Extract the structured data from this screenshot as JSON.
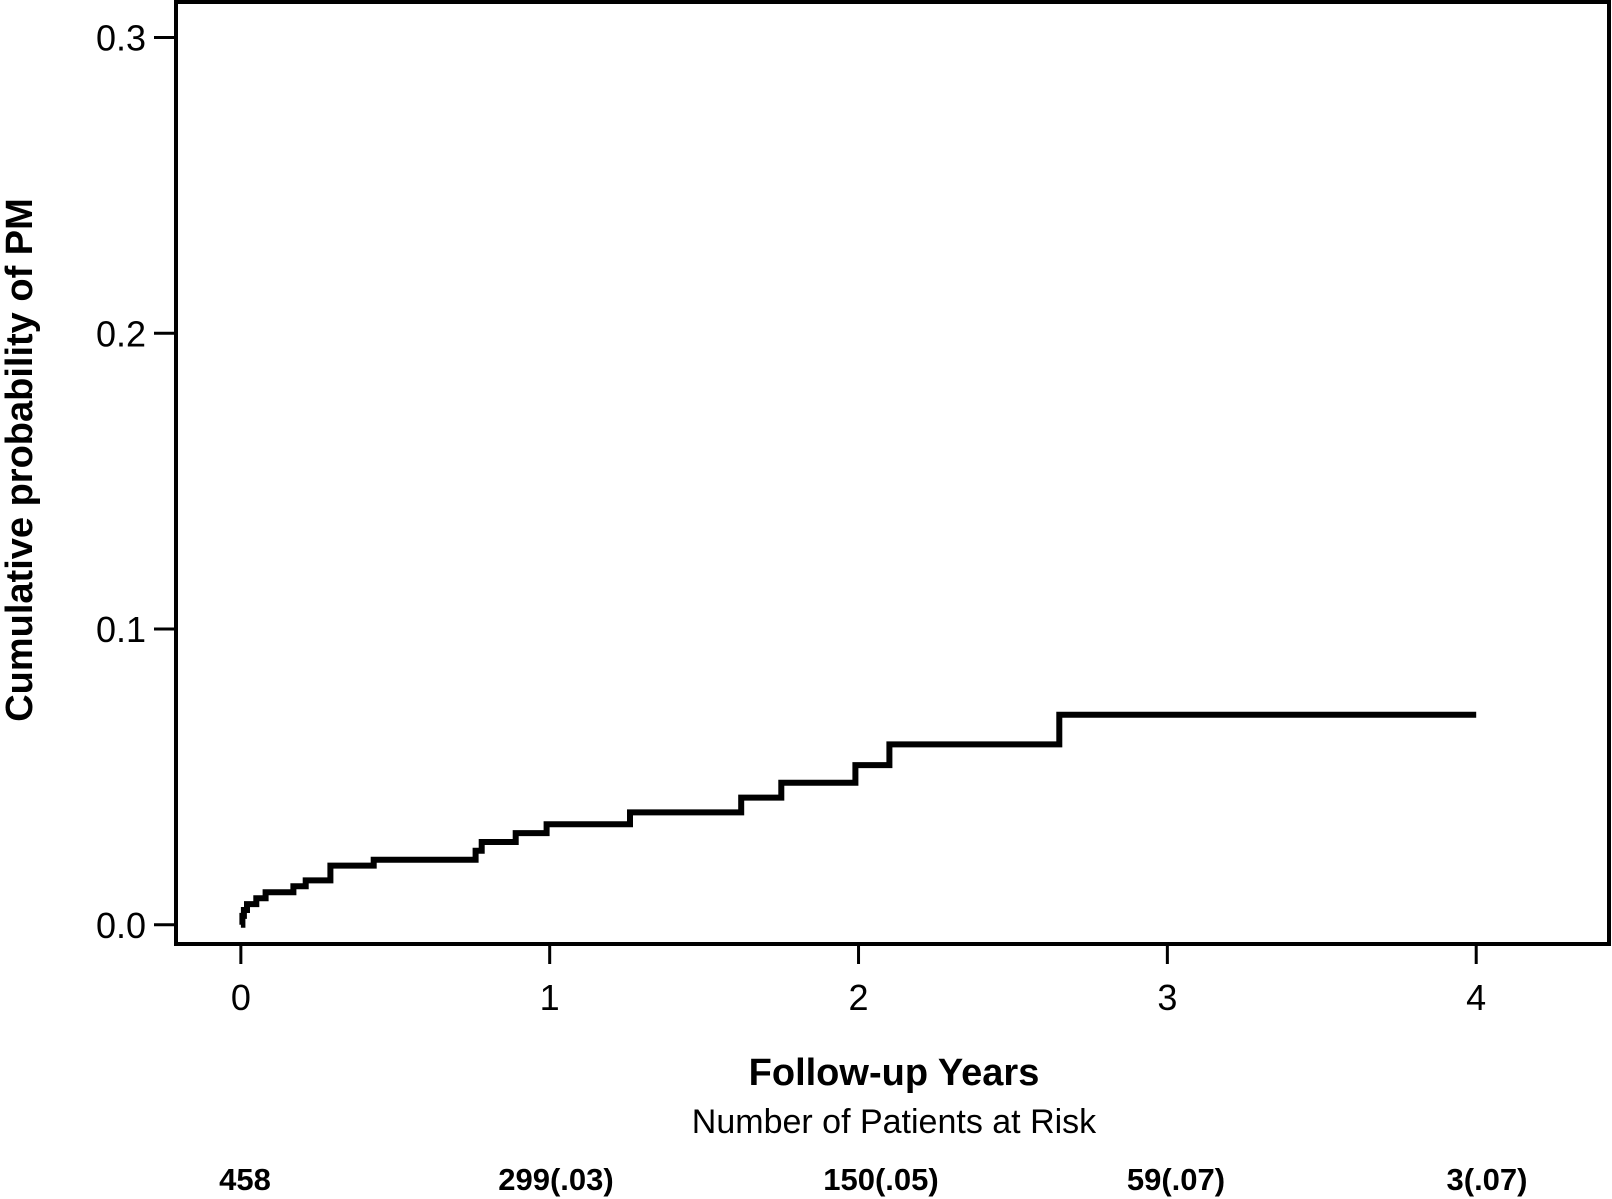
{
  "chart_data": {
    "type": "line",
    "step": true,
    "xlabel": "Follow-up Years",
    "ylabel": "Cumulative probability of PM",
    "xlim": [
      -0.21,
      4.43
    ],
    "ylim": [
      -0.0065,
      0.312
    ],
    "x_ticks": [
      0,
      1,
      2,
      3,
      4
    ],
    "x_tick_labels": [
      "0",
      "1",
      "2",
      "3",
      "4"
    ],
    "y_ticks": [
      0.0,
      0.1,
      0.2,
      0.3
    ],
    "y_tick_labels": [
      "0.0",
      "0.1",
      "0.2",
      "0.3"
    ],
    "grid": false,
    "series": [
      {
        "x": [
          0.0,
          0.005,
          0.01,
          0.02,
          0.05,
          0.08,
          0.17,
          0.21,
          0.29,
          0.43,
          0.76,
          0.78,
          0.89,
          0.99,
          1.26,
          1.62,
          1.75,
          1.99,
          2.1,
          2.65,
          4.0
        ],
        "y": [
          0.0,
          0.003,
          0.005,
          0.007,
          0.009,
          0.011,
          0.013,
          0.015,
          0.02,
          0.022,
          0.025,
          0.028,
          0.031,
          0.034,
          0.038,
          0.043,
          0.048,
          0.054,
          0.061,
          0.071,
          0.071
        ]
      }
    ],
    "risk_table": {
      "title": "Number of Patients at Risk",
      "values": [
        "458",
        "299(.03)",
        "150(.05)",
        "59(.07)",
        "3(.07)"
      ]
    }
  }
}
